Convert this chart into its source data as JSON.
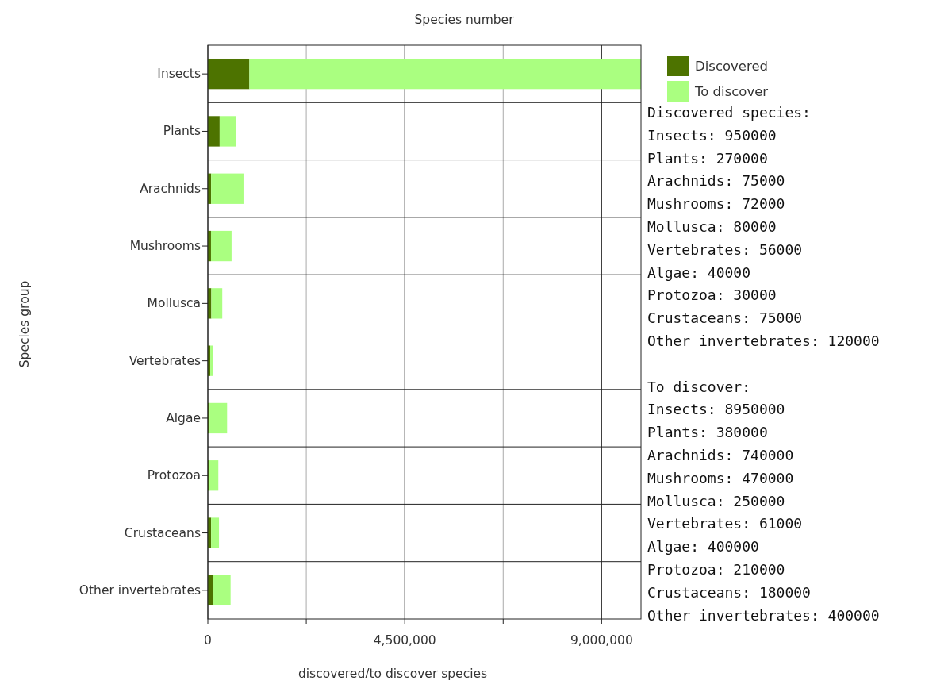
{
  "chart_data": {
    "type": "bar",
    "orientation": "horizontal",
    "stacked": true,
    "title": "Species number",
    "xlabel": "discovered/to discover species",
    "ylabel": "Species group",
    "categories": [
      "Insects",
      "Plants",
      "Arachnids",
      "Mushrooms",
      "Mollusca",
      "Vertebrates",
      "Algae",
      "Protozoa",
      "Crustaceans",
      "Other invertebrates"
    ],
    "series": [
      {
        "name": "Discovered",
        "color": "#4d7300",
        "values": [
          950000,
          270000,
          75000,
          72000,
          80000,
          56000,
          40000,
          30000,
          75000,
          120000
        ]
      },
      {
        "name": "To discover",
        "color": "#aaff80",
        "values": [
          8950000,
          380000,
          740000,
          470000,
          250000,
          61000,
          400000,
          210000,
          180000,
          400000
        ]
      }
    ],
    "xlim": [
      0,
      9900000
    ],
    "xticks": [
      {
        "value": 0,
        "label": "0"
      },
      {
        "value": 2250000,
        "label": null
      },
      {
        "value": 4500000,
        "label": "4,500,000"
      },
      {
        "value": 6750000,
        "label": null
      },
      {
        "value": 9000000,
        "label": "9,000,000"
      }
    ],
    "grid": "x",
    "legend": "top right",
    "annotations": [
      "Discovered species:\nInsects: 950000\nPlants: 270000\nArachnids: 75000\nMushrooms: 72000\nMollusca: 80000\nVertebrates: 56000\nAlgae: 40000\nProtozoa: 30000\nCrustaceans: 75000\nOther invertebrates: 120000",
      "To discover:\nInsects: 8950000\nPlants: 380000\nArachnids: 740000\nMushrooms: 470000\nMollusca: 250000\nVertebrates: 61000\nAlgae: 400000\nProtozoa: 210000\nCrustaceans: 180000\nOther invertebrates: 400000"
    ]
  }
}
